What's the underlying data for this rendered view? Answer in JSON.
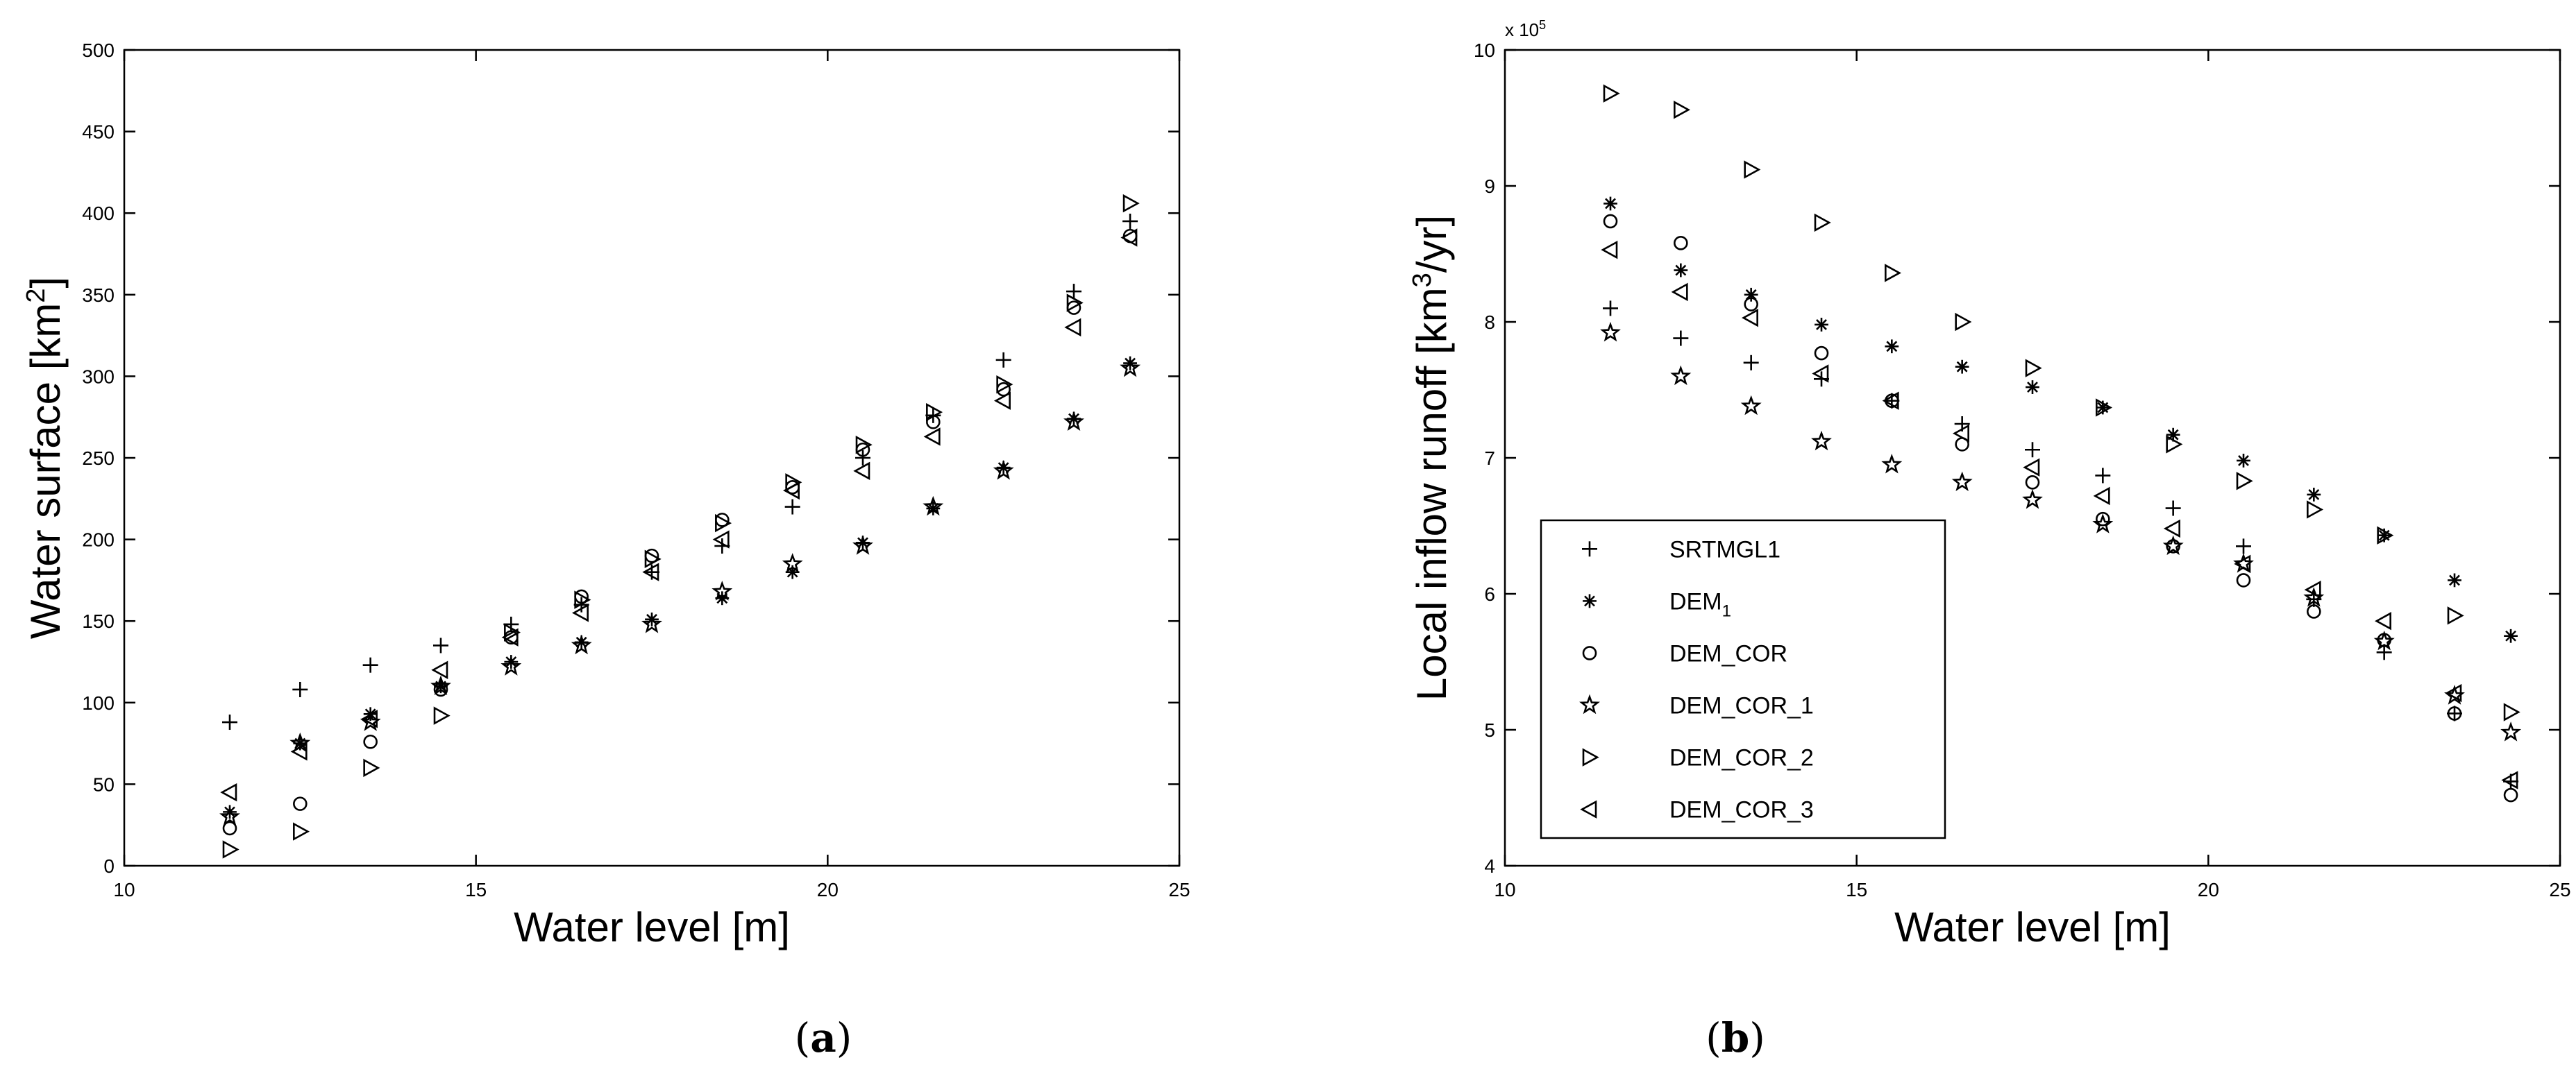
{
  "chart_data": [
    {
      "type": "scatter",
      "panel_label": "a",
      "xlabel": "Water level [m]",
      "ylabel": "Water surface [km",
      "ylabel_sup": "2",
      "ylabel_end": "]",
      "xlim": [
        10,
        25
      ],
      "ylim": [
        0,
        500
      ],
      "xticks": [
        10,
        15,
        20,
        25
      ],
      "yticks": [
        0,
        50,
        100,
        150,
        200,
        250,
        300,
        350,
        400,
        450,
        500
      ],
      "x": [
        11.5,
        12.5,
        13.5,
        14.5,
        15.5,
        16.5,
        17.5,
        18.5,
        19.5,
        20.5,
        21.5,
        22.5,
        23.5,
        24.3
      ],
      "series": [
        {
          "name": "SRTMGL1",
          "marker": "plus",
          "values": [
            88,
            108,
            123,
            135,
            148,
            160,
            180,
            196,
            220,
            250,
            276,
            310,
            352,
            395
          ]
        },
        {
          "name": "DEM_1",
          "marker": "asterisk",
          "values": [
            33,
            75,
            93,
            110,
            125,
            137,
            151,
            164,
            180,
            198,
            219,
            244,
            274,
            308
          ]
        },
        {
          "name": "DEM_COR",
          "marker": "circle",
          "values": [
            23,
            38,
            76,
            108,
            140,
            165,
            190,
            212,
            232,
            255,
            272,
            292,
            342,
            386
          ]
        },
        {
          "name": "DEM_COR_1",
          "marker": "star",
          "values": [
            30,
            75,
            88,
            110,
            122,
            135,
            148,
            168,
            185,
            196,
            220,
            242,
            272,
            305
          ]
        },
        {
          "name": "DEM_COR_2",
          "marker": "triangle-right",
          "values": [
            10,
            21,
            60,
            92,
            143,
            163,
            188,
            210,
            235,
            258,
            278,
            295,
            345,
            406
          ]
        },
        {
          "name": "DEM_COR_3",
          "marker": "triangle-left",
          "values": [
            45,
            70,
            90,
            120,
            140,
            155,
            180,
            200,
            230,
            242,
            263,
            285,
            330,
            385
          ]
        }
      ]
    },
    {
      "type": "scatter",
      "panel_label": "b",
      "xlabel": "Water level [m]",
      "ylabel": "Local inflow runoff [km",
      "ylabel_sup": "3",
      "ylabel_end": "/yr]",
      "y_scale_label": "x 10",
      "y_scale_exp": "5",
      "xlim": [
        10,
        25
      ],
      "ylim": [
        4,
        10
      ],
      "xticks": [
        10,
        15,
        20,
        25
      ],
      "yticks": [
        4,
        5,
        6,
        7,
        8,
        9,
        10
      ],
      "x": [
        11.5,
        12.5,
        13.5,
        14.5,
        15.5,
        16.5,
        17.5,
        18.5,
        19.5,
        20.5,
        21.5,
        22.5,
        23.5,
        24.3
      ],
      "series": [
        {
          "name": "SRTMGL1",
          "label": "SRTMGL1",
          "marker": "plus",
          "values": [
            8.1,
            7.88,
            7.7,
            7.58,
            7.42,
            7.25,
            7.06,
            6.87,
            6.63,
            6.35,
            5.96,
            5.57,
            5.12,
            4.62
          ]
        },
        {
          "name": "DEM_1",
          "label": "DEM",
          "label_sub": "1",
          "marker": "asterisk",
          "values": [
            8.87,
            8.38,
            8.2,
            7.98,
            7.82,
            7.67,
            7.52,
            7.37,
            7.17,
            6.98,
            6.73,
            6.43,
            6.1,
            5.69
          ]
        },
        {
          "name": "DEM_COR",
          "label": "DEM_COR",
          "marker": "circle",
          "values": [
            8.74,
            8.58,
            8.13,
            7.77,
            7.42,
            7.1,
            6.82,
            6.55,
            6.35,
            6.1,
            5.87,
            5.66,
            5.12,
            4.52
          ]
        },
        {
          "name": "DEM_COR_1",
          "label": "DEM_COR_1",
          "marker": "star",
          "values": [
            7.92,
            7.6,
            7.38,
            7.12,
            6.95,
            6.82,
            6.69,
            6.51,
            6.35,
            6.22,
            5.97,
            5.65,
            5.25,
            4.98
          ]
        },
        {
          "name": "DEM_COR_2",
          "label": "DEM_COR_2",
          "marker": "triangle-right",
          "values": [
            9.68,
            9.56,
            9.12,
            8.73,
            8.36,
            8.0,
            7.66,
            7.37,
            7.1,
            6.83,
            6.62,
            6.43,
            5.84,
            5.13
          ]
        },
        {
          "name": "DEM_COR_3",
          "label": "DEM_COR_3",
          "marker": "triangle-left",
          "values": [
            8.53,
            8.22,
            8.03,
            7.62,
            7.42,
            7.18,
            6.93,
            6.72,
            6.48,
            6.22,
            6.03,
            5.8,
            5.27,
            4.63
          ]
        }
      ]
    }
  ]
}
